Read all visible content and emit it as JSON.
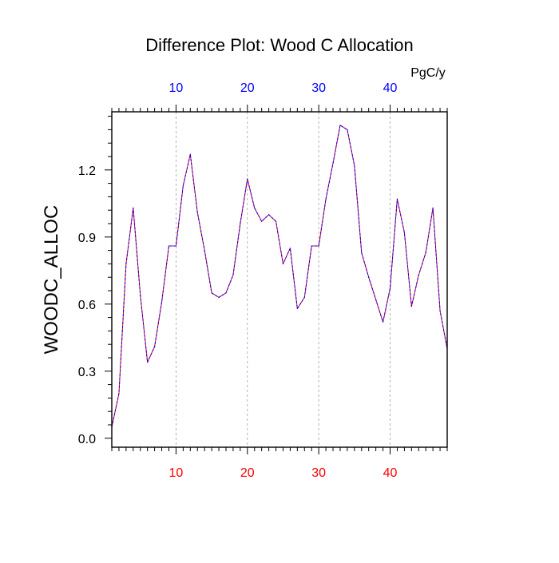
{
  "chart_data": {
    "type": "line",
    "title": "Difference Plot: Wood C Allocation",
    "xlabel": "",
    "ylabel": "WOODC_ALLOC",
    "units": "PgC/y",
    "xlim": [
      1,
      48
    ],
    "ylim": [
      -0.04,
      1.46
    ],
    "x_ticks_bottom": [
      10,
      20,
      30,
      40
    ],
    "x_ticks_top": [
      10,
      20,
      30,
      40
    ],
    "y_ticks": [
      "0.0",
      "0.3",
      "0.6",
      "0.9",
      "1.2"
    ],
    "y_tick_values": [
      0.0,
      0.3,
      0.6,
      0.9,
      1.2
    ],
    "grid": "vertical dashed at major x ticks",
    "colors": {
      "line_primary": "#ff0000",
      "line_overlay": "#0000ff",
      "top_tick_labels": "#0000ff",
      "bottom_tick_labels": "#ff0000",
      "grid": "#a0a0a0",
      "axes": "#000000"
    },
    "series": [
      {
        "x": [
          1,
          2,
          3,
          4,
          5,
          6,
          7,
          8,
          9,
          10,
          11,
          12,
          13,
          14,
          15,
          16,
          17,
          18,
          19,
          20,
          21,
          22,
          23,
          24,
          25,
          26,
          27,
          28,
          29,
          30,
          31,
          32,
          33,
          34,
          35,
          36,
          37,
          38,
          39,
          40,
          41,
          42,
          43,
          44,
          45,
          46,
          47,
          48
        ],
        "values": [
          0.05,
          0.2,
          0.78,
          1.03,
          0.64,
          0.34,
          0.41,
          0.61,
          0.86,
          0.86,
          1.13,
          1.27,
          1.01,
          0.84,
          0.65,
          0.63,
          0.65,
          0.73,
          0.96,
          1.16,
          1.03,
          0.97,
          1.0,
          0.97,
          0.78,
          0.85,
          0.58,
          0.63,
          0.86,
          0.86,
          1.07,
          1.23,
          1.4,
          1.38,
          1.22,
          0.83,
          0.72,
          0.62,
          0.52,
          0.67,
          1.07,
          0.92,
          0.59,
          0.73,
          0.83,
          1.03,
          0.57,
          0.4
        ]
      }
    ]
  }
}
